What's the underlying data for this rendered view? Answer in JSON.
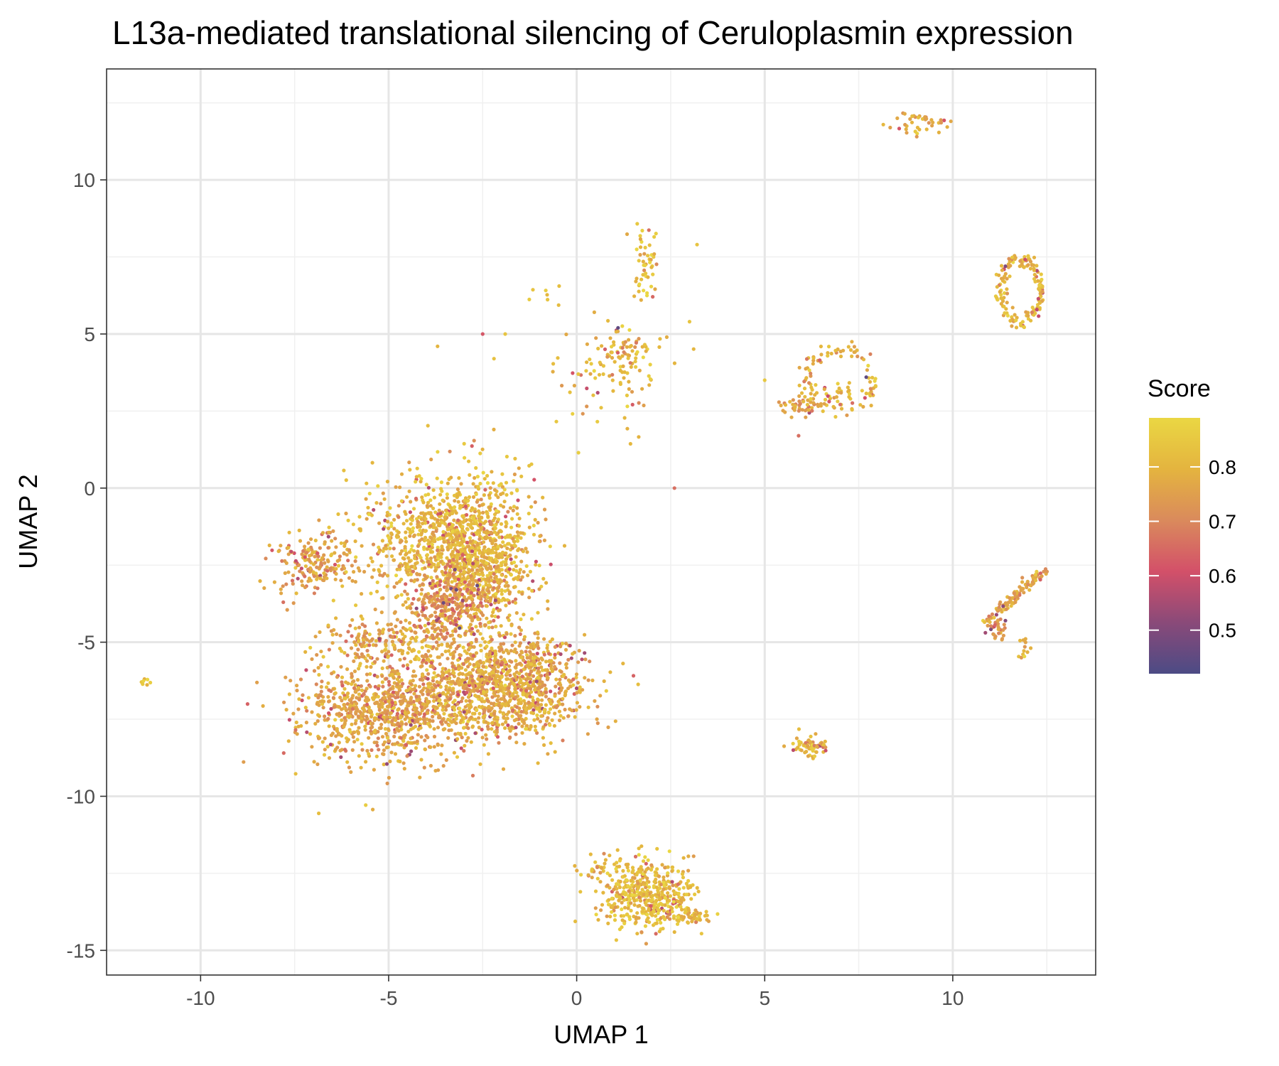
{
  "chart_data": {
    "type": "scatter",
    "title": "L13a-mediated translational silencing of Ceruloplasmin expression",
    "xlabel": "UMAP 1",
    "ylabel": "UMAP 2",
    "xlim": [
      -12.5,
      13.8
    ],
    "ylim": [
      -15.8,
      13.6
    ],
    "x_ticks": [
      -10,
      -5,
      0,
      5,
      10
    ],
    "x_tick_labels": [
      "-10",
      "-5",
      "0",
      "5",
      "10"
    ],
    "y_ticks": [
      -15,
      -10,
      -5,
      0,
      5,
      10
    ],
    "y_tick_labels": [
      "-15",
      "-10",
      "-5",
      "0",
      "5",
      "10"
    ],
    "grid": true,
    "color_scale": {
      "title": "Score",
      "min": 0.42,
      "max": 0.89,
      "ticks": [
        0.5,
        0.6,
        0.7,
        0.8
      ],
      "tick_labels": [
        "0.5",
        "0.6",
        "0.7",
        "0.8"
      ],
      "colors": [
        "#4c4b85",
        "#8a4a79",
        "#d35069",
        "#da8a5c",
        "#e4b43f",
        "#ead743"
      ]
    },
    "clusters": [
      {
        "cx": -5.0,
        "cy": -7.2,
        "sx": 1.2,
        "sy": 0.8,
        "n": 900,
        "score": 0.76
      },
      {
        "cx": -2.8,
        "cy": -2.2,
        "sx": 0.8,
        "sy": 1.3,
        "n": 1100,
        "score": 0.8
      },
      {
        "cx": -4.3,
        "cy": -1.6,
        "sx": 1.0,
        "sy": 0.9,
        "n": 350,
        "score": 0.8
      },
      {
        "cx": -7.0,
        "cy": -2.4,
        "sx": 0.6,
        "sy": 0.5,
        "n": 180,
        "score": 0.75
      },
      {
        "cx": -2.0,
        "cy": -6.5,
        "sx": 1.1,
        "sy": 0.8,
        "n": 1000,
        "score": 0.78
      },
      {
        "cx": -4.8,
        "cy": -4.9,
        "sx": 1.0,
        "sy": 0.4,
        "n": 220,
        "score": 0.77
      },
      {
        "cx": -3.3,
        "cy": -3.7,
        "sx": 0.6,
        "sy": 0.6,
        "n": 250,
        "score": 0.71
      },
      {
        "cx": -0.9,
        "cy": -5.4,
        "sx": 0.5,
        "sy": 0.4,
        "n": 80,
        "score": 0.78
      },
      {
        "cx": -11.5,
        "cy": -6.3,
        "sx": 0.08,
        "sy": 0.05,
        "n": 8,
        "score": 0.83
      },
      {
        "cx": 1.9,
        "cy": -13.2,
        "sx": 0.6,
        "sy": 0.55,
        "n": 450,
        "score": 0.82
      },
      {
        "cx": 3.0,
        "cy": -13.9,
        "sx": 0.3,
        "sy": 0.1,
        "n": 50,
        "score": 0.81
      },
      {
        "cx": 0.6,
        "cy": -12.3,
        "sx": 0.3,
        "sy": 0.2,
        "n": 30,
        "score": 0.81
      },
      {
        "cx": 6.2,
        "cy": -8.4,
        "sx": 0.25,
        "sy": 0.15,
        "n": 70,
        "score": 0.8
      },
      {
        "cx": 1.2,
        "cy": 4.3,
        "sx": 0.6,
        "sy": 0.5,
        "n": 100,
        "score": 0.81
      },
      {
        "cx": 0.5,
        "cy": 3.0,
        "sx": 0.7,
        "sy": 0.8,
        "n": 30,
        "score": 0.81
      },
      {
        "cx": 1.8,
        "cy": 7.2,
        "sx": 0.2,
        "sy": 0.6,
        "n": 50,
        "score": 0.83
      },
      {
        "cx": -0.8,
        "cy": 6.3,
        "sx": 0.3,
        "sy": 0.3,
        "n": 7,
        "score": 0.84
      },
      {
        "cx": 9.1,
        "cy": 11.9,
        "sx": 0.4,
        "sy": 0.2,
        "n": 40,
        "score": 0.78
      },
      {
        "cx": 6.0,
        "cy": 2.7,
        "sx": 0.3,
        "sy": 0.15,
        "n": 40,
        "score": 0.76
      },
      {
        "cx": 6.9,
        "cy": 3.1,
        "sx": 0.3,
        "sy": 0.2,
        "n": 30,
        "score": 0.82
      },
      {
        "cx": 11.1,
        "cy": -4.5,
        "sx": 0.15,
        "sy": 0.25,
        "n": 40,
        "score": 0.74
      },
      {
        "cx": 11.9,
        "cy": -5.2,
        "sx": 0.1,
        "sy": 0.2,
        "n": 12,
        "score": 0.8
      }
    ],
    "rings": [
      {
        "cx": 7.0,
        "cy": 3.5,
        "rx": 0.9,
        "ry": 1.0,
        "n": 90,
        "score": 0.79
      },
      {
        "cx": 11.8,
        "cy": 6.4,
        "rx": 0.55,
        "ry": 1.0,
        "n": 150,
        "score": 0.8
      }
    ],
    "lines": [
      {
        "x0": 11.2,
        "y0": -4.0,
        "x1": 12.4,
        "y1": -2.7,
        "n": 90,
        "score": 0.76
      }
    ],
    "singles": [
      {
        "x": 2.6,
        "y": 0.0,
        "score": 0.66
      },
      {
        "x": -2.5,
        "y": 5.0,
        "score": 0.62
      },
      {
        "x": -3.7,
        "y": 4.6,
        "score": 0.8
      },
      {
        "x": 3.0,
        "y": 5.4,
        "score": 0.84
      },
      {
        "x": 3.2,
        "y": 7.9,
        "score": 0.84
      },
      {
        "x": 5.0,
        "y": 3.5,
        "score": 0.85
      },
      {
        "x": 5.9,
        "y": 1.7,
        "score": 0.66
      },
      {
        "x": 1.1,
        "y": 5.2,
        "score": 0.45
      },
      {
        "x": 7.7,
        "y": 3.6,
        "score": 0.45
      },
      {
        "x": 11.4,
        "y": 7.2,
        "score": 0.5
      },
      {
        "x": -3.2,
        "y": -3.3,
        "score": 0.46
      },
      {
        "x": 11.4,
        "y": -4.3,
        "score": 0.5
      },
      {
        "x": -2.2,
        "y": 4.2,
        "score": 0.83
      },
      {
        "x": -1.9,
        "y": 5.0,
        "score": 0.84
      }
    ]
  }
}
